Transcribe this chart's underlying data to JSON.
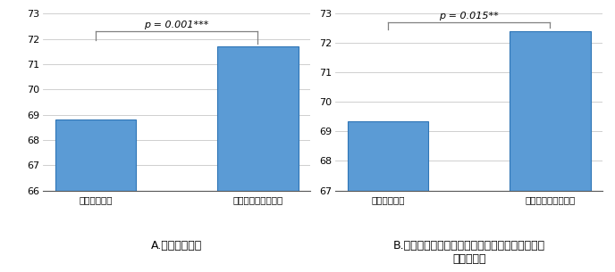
{
  "left_chart": {
    "categories": [
      "ソーティング",
      "ランダムマッチング"
    ],
    "values": [
      68.8,
      71.7
    ],
    "ylim": [
      66,
      73
    ],
    "yticks": [
      66,
      67,
      68,
      69,
      70,
      71,
      72,
      73
    ],
    "bar_color": "#5B9BD5",
    "bar_edge_color": "#2E75B6",
    "p_text": "p = 0.001***",
    "caption": "A.　全ての学生"
  },
  "right_chart": {
    "categories": [
      "ソーティング",
      "ランダムマッチング"
    ],
    "values": [
      69.35,
      72.4
    ],
    "ylim": [
      67,
      73
    ],
    "yticks": [
      67,
      68,
      69,
      70,
      71,
      72,
      73
    ],
    "bar_color": "#5B9BD5",
    "bar_edge_color": "#2E75B6",
    "p_text": "p = 0.015**",
    "caption": "B.２名ともにピアレポート課顔を提出したペアに\n属する学生"
  },
  "bar_width": 0.5,
  "background_color": "#FFFFFF",
  "grid_color": "#C8C8C8",
  "bracket_color": "#808080",
  "tick_fontsize": 8,
  "xtick_fontsize": 7.5,
  "caption_fontsize": 9,
  "ptext_fontsize": 8
}
